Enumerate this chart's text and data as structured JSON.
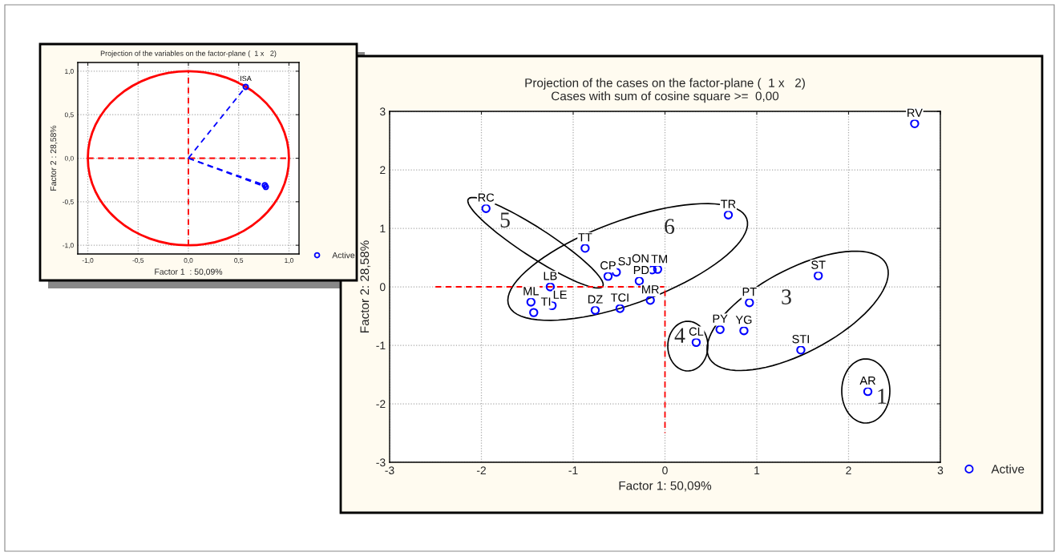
{
  "chart_data": [
    {
      "type": "scatter",
      "title": "Projection of the variables on the factor-plane (  1 x   2)",
      "xlabel": "Factor 1  : 50,09%",
      "ylabel": "Factor 2 : 28,58%",
      "xlim": [
        -1.1,
        1.1
      ],
      "ylim": [
        -1.1,
        1.1
      ],
      "xticks": [
        {
          "value": -1,
          "label": "-1,0"
        },
        {
          "value": -0.5,
          "label": "-0,5"
        },
        {
          "value": 0,
          "label": "0,0"
        },
        {
          "value": 0.5,
          "label": "0,5"
        },
        {
          "value": 1,
          "label": "1,0"
        }
      ],
      "yticks": [
        {
          "value": -1,
          "label": "-1,0"
        },
        {
          "value": -0.5,
          "label": "-0,5"
        },
        {
          "value": 0,
          "label": "0,0"
        },
        {
          "value": 0.5,
          "label": "0,5"
        },
        {
          "value": 1,
          "label": "1,0"
        }
      ],
      "grid": true,
      "legend": "bottom right",
      "series": [
        {
          "type": "line",
          "color": "#ff0000",
          "line_style": "dashed",
          "x": [
            -1,
            1
          ],
          "values": [
            0,
            0
          ]
        },
        {
          "type": "line",
          "color": "#ff0000",
          "line_style": "dashed",
          "x": [
            0,
            0
          ],
          "values": [
            -1,
            1
          ]
        },
        {
          "type": "line",
          "color": "#0000ff",
          "line_style": "dashed",
          "x": [
            0,
            0.57
          ],
          "values": [
            0,
            0.82
          ]
        },
        {
          "type": "line",
          "color": "#0000ff",
          "line_style": "dashed",
          "x": [
            0,
            0.76
          ],
          "values": [
            0,
            -0.31
          ]
        },
        {
          "type": "line",
          "color": "#0000ff",
          "line_style": "dashed",
          "x": [
            0,
            0.77
          ],
          "values": [
            0,
            -0.33
          ]
        },
        {
          "name": "Active",
          "color": "#0000ff",
          "marker": "circle",
          "x": [
            0.57,
            0.76,
            0.77
          ],
          "values": [
            0.82,
            -0.31,
            -0.33
          ],
          "value_labels": [
            "ISA",
            null,
            null
          ]
        }
      ]
    },
    {
      "type": "scatter",
      "title": "Projection of the cases on the factor-plane (  1 x   2)",
      "subtitle": "Cases with sum of cosine square >=  0,00",
      "xlabel": "Factor 1: 50,09%",
      "ylabel": "Factor 2: 28,58%",
      "xlim": [
        -3,
        3
      ],
      "ylim": [
        -3,
        3
      ],
      "xticks": [
        -3,
        -2,
        -1,
        0,
        1,
        2,
        3
      ],
      "yticks": [
        -3,
        -2,
        -1,
        0,
        1,
        2,
        3
      ],
      "grid": true,
      "legend": "bottom right",
      "annotations": [
        "1",
        "3",
        "4",
        "5",
        "6"
      ],
      "series": [
        {
          "type": "line",
          "color": "#ff0000",
          "line_style": "dashed",
          "x": [
            -2.5,
            0,
            0
          ],
          "values": [
            0,
            0,
            -2.5
          ]
        },
        {
          "name": "Active",
          "color": "#0000ff",
          "marker": "circle",
          "x": [
            2.72,
            -1.95,
            0.69,
            -0.87,
            -0.62,
            -0.53,
            -0.28,
            -0.14,
            -0.08,
            -1.25,
            -1.46,
            -1.43,
            -1.23,
            -0.76,
            -0.49,
            -0.16,
            0.34,
            0.6,
            0.86,
            0.92,
            1.67,
            1.48,
            2.21
          ],
          "values": [
            2.79,
            1.34,
            1.23,
            0.66,
            0.18,
            0.25,
            0.1,
            0.29,
            0.3,
            0.0,
            -0.26,
            -0.44,
            -0.32,
            -0.4,
            -0.37,
            -0.23,
            -0.95,
            -0.73,
            -0.75,
            -0.27,
            0.19,
            -1.08,
            -1.79
          ],
          "value_labels": [
            "RV",
            "RC",
            "TR",
            "TT",
            "CP",
            "SJ",
            "PD",
            "TM",
            "ON",
            "LB",
            "ML",
            "TI",
            "LE",
            "DZ",
            "TCI",
            "MR",
            "CL",
            "PY",
            "YG",
            "PT",
            "ST",
            "STI",
            "AR"
          ]
        }
      ]
    }
  ]
}
